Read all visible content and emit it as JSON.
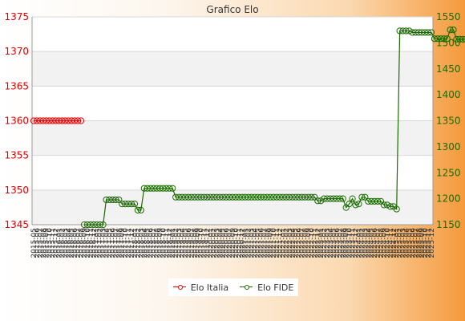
{
  "chart_data": {
    "type": "line",
    "title": "Grafico Elo",
    "y_left": {
      "min": 1345,
      "max": 1375,
      "ticks": [
        1345,
        1350,
        1355,
        1360,
        1365,
        1370,
        1375
      ],
      "color": "#e00000"
    },
    "y_right": {
      "min": 1150,
      "max": 1550,
      "ticks": [
        1150,
        1200,
        1250,
        1300,
        1350,
        1400,
        1450,
        1500,
        1550
      ],
      "color": "#1a6b00"
    },
    "x_first_label": "2015-05",
    "x_last_label": "2025-12",
    "x_label_count": 127,
    "grid": true,
    "legend_position": "bottom",
    "series": [
      {
        "name": "Elo Italia",
        "axis": "left",
        "color": "#e00000",
        "values": [
          1360,
          1360,
          1360,
          1360,
          1360,
          1360,
          1360,
          1360,
          1360,
          1360,
          1360,
          1360,
          1360,
          1360,
          1360,
          1360
        ]
      },
      {
        "name": "Elo FIDE",
        "axis": "right",
        "color": "#1a6b00",
        "values": [
          null,
          null,
          null,
          null,
          null,
          null,
          null,
          null,
          null,
          null,
          null,
          null,
          null,
          null,
          null,
          null,
          1150,
          1150,
          1150,
          1150,
          1150,
          1150,
          1150,
          1198,
          1198,
          1198,
          1198,
          1198,
          1190,
          1190,
          1190,
          1190,
          1190,
          1178,
          1178,
          1220,
          1220,
          1220,
          1220,
          1220,
          1220,
          1220,
          1220,
          1220,
          1220,
          1203,
          1203,
          1203,
          1203,
          1203,
          1203,
          1203,
          1203,
          1203,
          1203,
          1203,
          1203,
          1203,
          1203,
          1203,
          1203,
          1203,
          1203,
          1203,
          1203,
          1203,
          1203,
          1203,
          1203,
          1203,
          1203,
          1203,
          1203,
          1203,
          1203,
          1203,
          1203,
          1203,
          1203,
          1203,
          1203,
          1203,
          1203,
          1203,
          1203,
          1203,
          1203,
          1203,
          1203,
          1203,
          1196,
          1196,
          1200,
          1200,
          1200,
          1200,
          1200,
          1200,
          1200,
          1183,
          1190,
          1200,
          1188,
          1190,
          1203,
          1203,
          1195,
          1195,
          1195,
          1195,
          1195,
          1188,
          1188,
          1185,
          1185,
          1180,
          1523,
          1523,
          1523,
          1523,
          1520,
          1520,
          1520,
          1520,
          1520,
          1520,
          1520,
          1508,
          1508,
          1508,
          1508,
          1508,
          1525,
          1525,
          1507,
          1507,
          1507,
          1507,
          1507,
          1507,
          1507,
          1508,
          1493,
          1493
        ]
      }
    ]
  }
}
